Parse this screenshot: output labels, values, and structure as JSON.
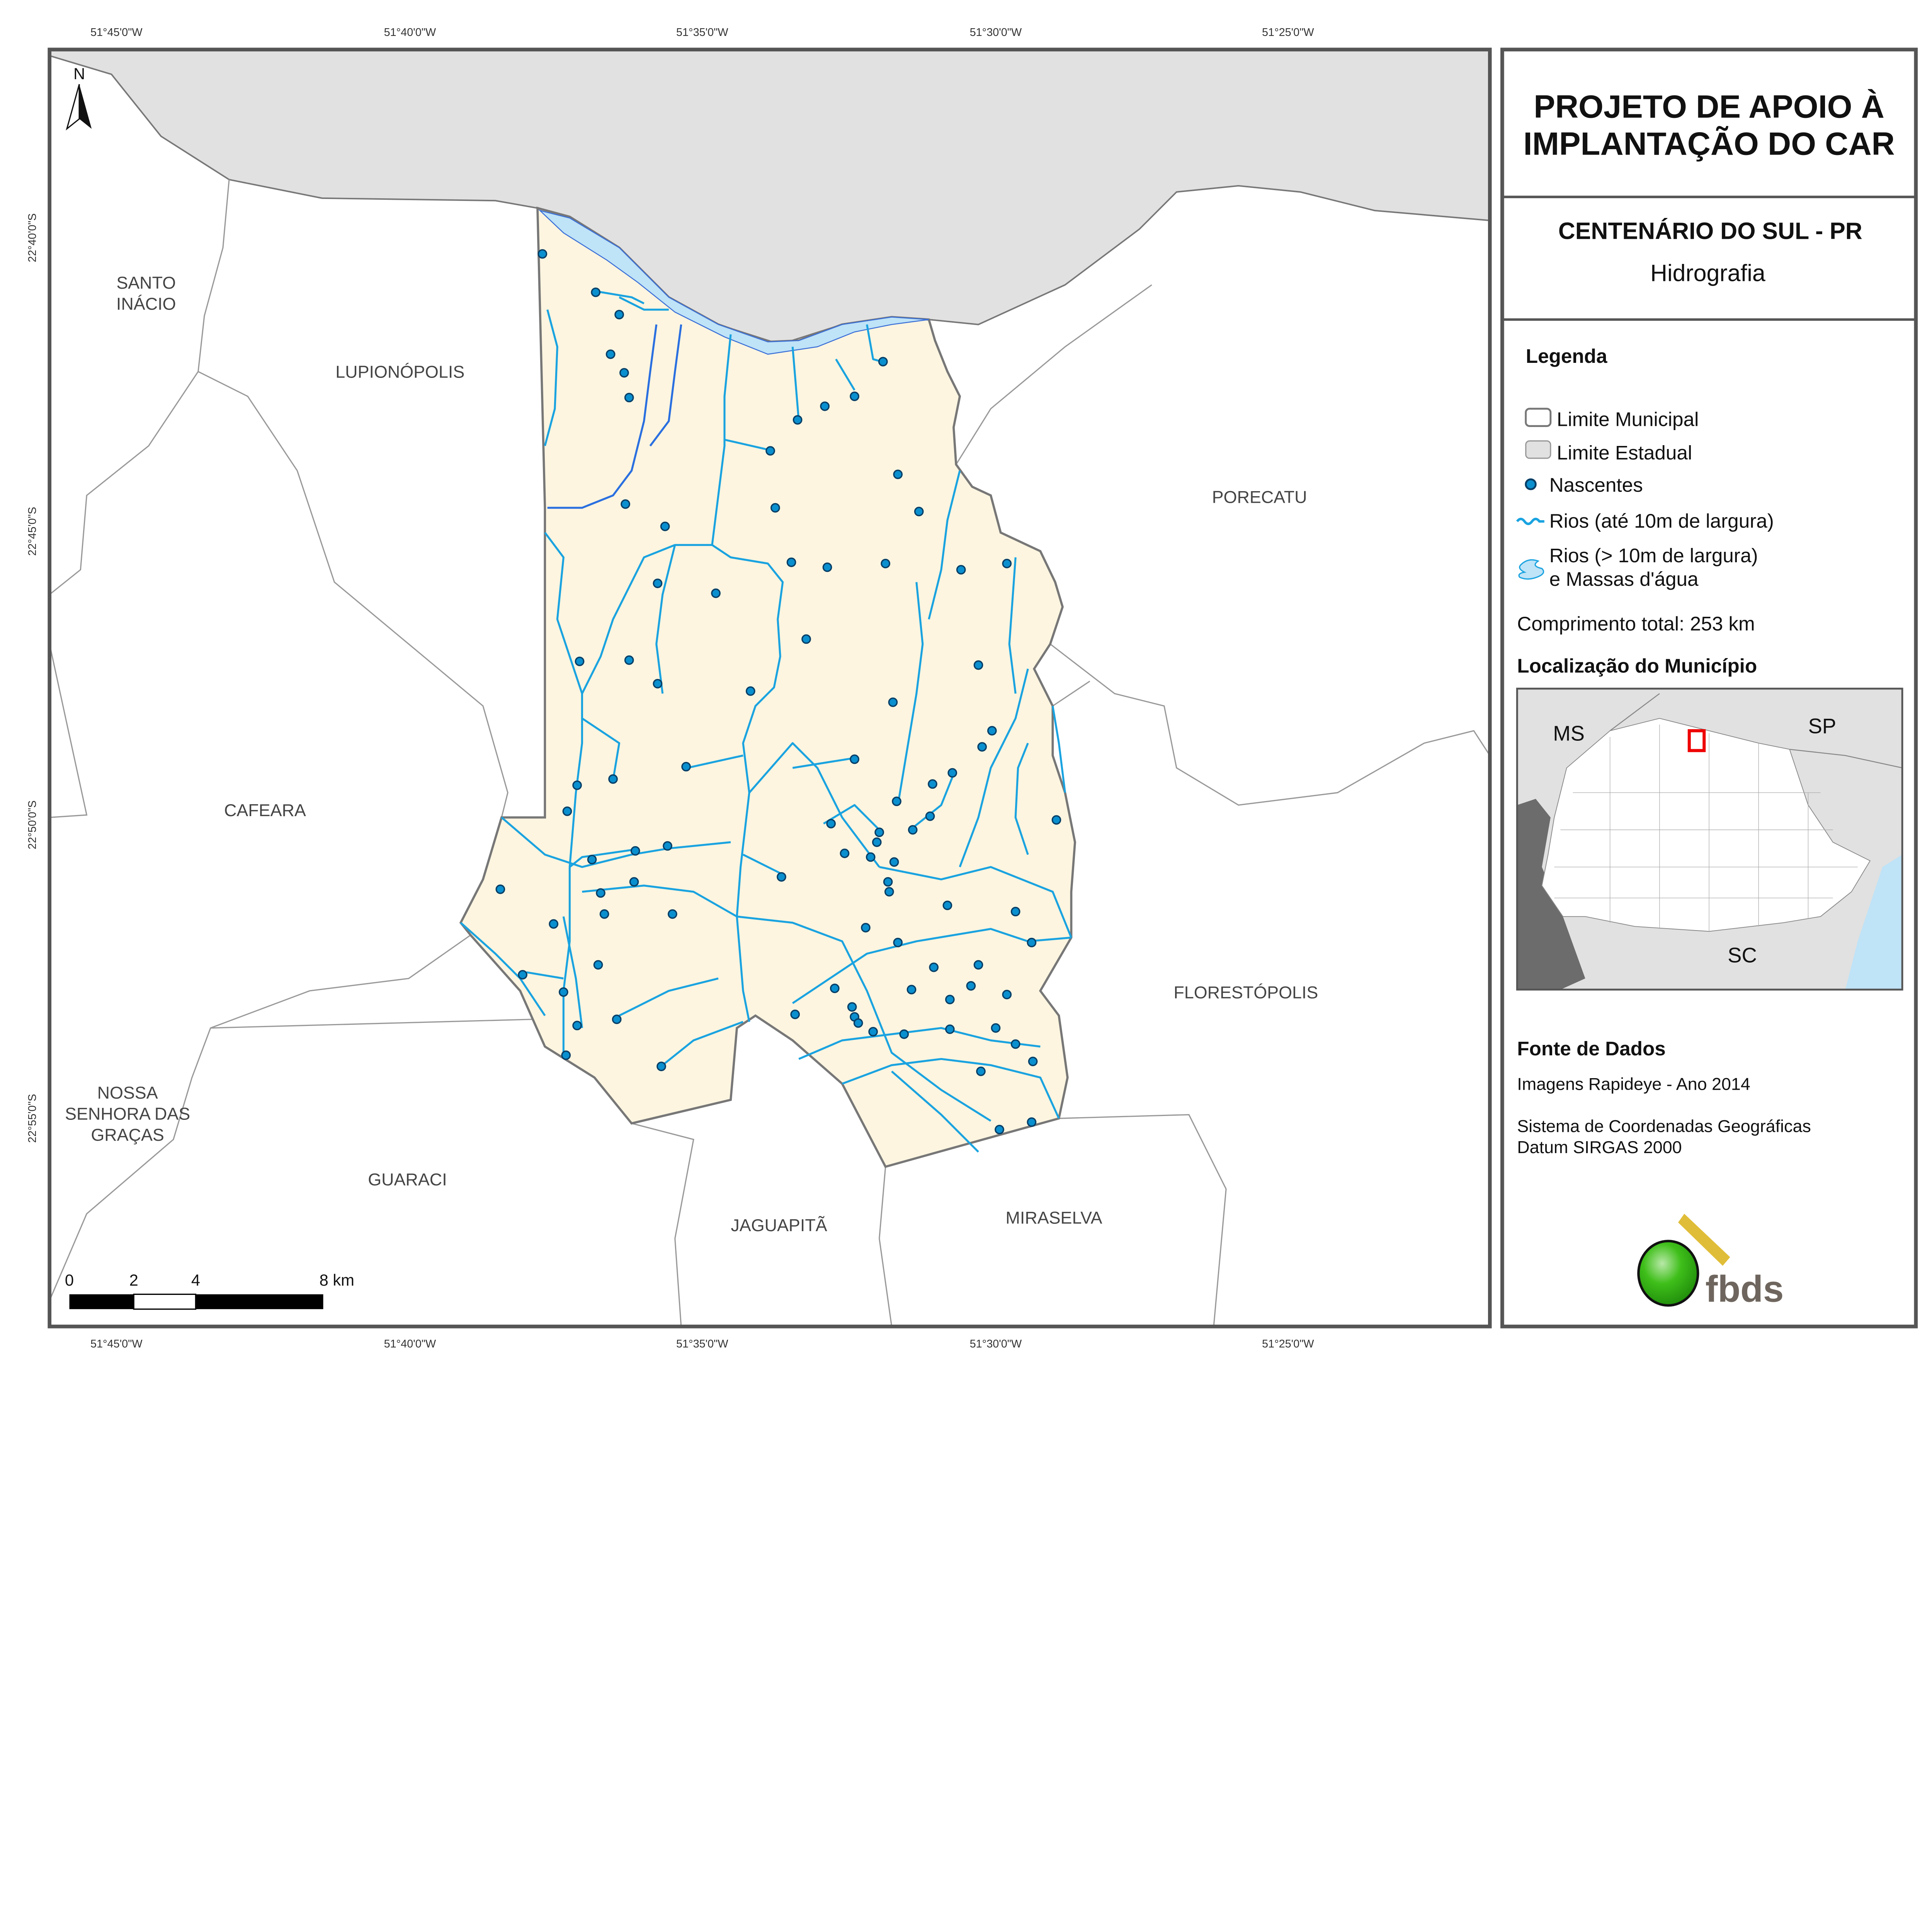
{
  "title": {
    "project_line1": "PROJETO DE APOIO À",
    "project_line2": "IMPLANTAÇÃO DO CAR",
    "municipality": "CENTENÁRIO DO SUL - PR",
    "theme": "Hidrografia"
  },
  "legend": {
    "heading": "Legenda",
    "items": [
      {
        "label": "Limite Municipal",
        "symbol": "outlined-box"
      },
      {
        "label": "Limite Estadual",
        "symbol": "gray-box"
      },
      {
        "label": "Nascentes",
        "symbol": "blue-dot"
      },
      {
        "label": "Rios (até 10m de largura)",
        "symbol": "blue-line"
      },
      {
        "label_line1": "Rios (> 10m de largura)",
        "label_line2": "e Massas d'água",
        "symbol": "blue-polygon"
      }
    ],
    "total_length": "Comprimento total: 253 km"
  },
  "location": {
    "heading": "Localização do Município",
    "labels": [
      "MS",
      "SP",
      "SC"
    ]
  },
  "sources": {
    "heading": "Fonte de Dados",
    "imagery": "Imagens Rapideye - Ano 2014",
    "crs_line1": "Sistema de Coordenadas Geográficas",
    "crs_line2": "Datum SIRGAS 2000"
  },
  "logo": {
    "text": "fbds"
  },
  "map": {
    "north_label": "N",
    "longitude_ticks": [
      "51°45'0\"W",
      "51°40'0\"W",
      "51°35'0\"W",
      "51°30'0\"W",
      "51°25'0\"W"
    ],
    "latitude_ticks": [
      "22°40'0\"S",
      "22°45'0\"S",
      "22°50'0\"S",
      "22°55'0\"S"
    ],
    "municipalities": {
      "santo_inacio_1": "SANTO",
      "santo_inacio_2": "INÁCIO",
      "lupionopolis": "LUPIONÓPOLIS",
      "porecatu": "PORECATU",
      "cafeara": "CAFEARA",
      "florestopolis": "FLORESTÓPOLIS",
      "nossa_senhora_1": "NOSSA",
      "nossa_senhora_2": "SENHORA DAS",
      "nossa_senhora_3": "GRAÇAS",
      "guaraci": "GUARACI",
      "jaguapita": "JAGUAPITÃ",
      "miraselva": "MIRASELVA"
    },
    "scale_bar": {
      "labels": [
        "0",
        "2",
        "4",
        "8 km"
      ]
    }
  },
  "colors": {
    "municipality_fill": "#fdf5e0",
    "state_fill": "#e1e1e1",
    "river": "#1aa3e0",
    "large_river": "#bfe3f7",
    "spring": "#0a8fcf",
    "boundary": "#777777",
    "frame": "#555555"
  }
}
